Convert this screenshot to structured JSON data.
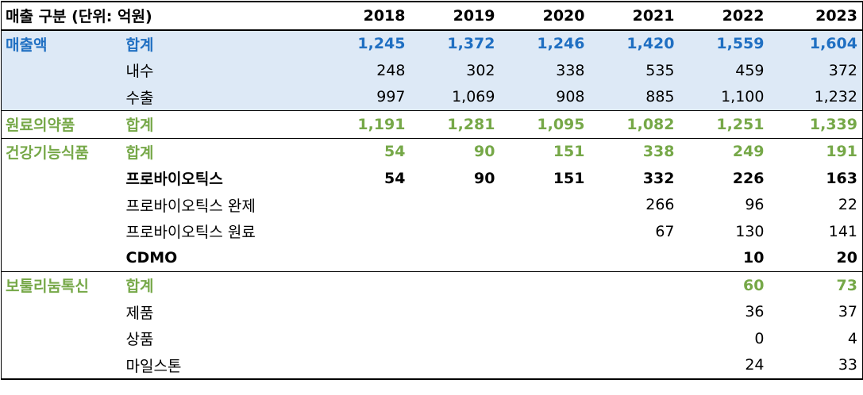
{
  "header": {
    "label": "매출 구분 (단위: 억원)",
    "years": [
      "2018",
      "2019",
      "2020",
      "2021",
      "2022",
      "2023"
    ]
  },
  "rows": [
    {
      "c1": "매출액",
      "c2": "합계",
      "values": [
        "1,245",
        "1,372",
        "1,246",
        "1,420",
        "1,559",
        "1,604"
      ]
    },
    {
      "c1": "",
      "c2": "내수",
      "values": [
        "248",
        "302",
        "338",
        "535",
        "459",
        "372"
      ]
    },
    {
      "c1": "",
      "c2": "수출",
      "values": [
        "997",
        "1,069",
        "908",
        "885",
        "1,100",
        "1,232"
      ]
    },
    {
      "c1": "원료의약품",
      "c2": "합계",
      "values": [
        "1,191",
        "1,281",
        "1,095",
        "1,082",
        "1,251",
        "1,339"
      ]
    },
    {
      "c1": "건강기능식품",
      "c2": "합계",
      "values": [
        "54",
        "90",
        "151",
        "338",
        "249",
        "191"
      ]
    },
    {
      "c1": "",
      "c2": "프로바이오틱스",
      "values": [
        "54",
        "90",
        "151",
        "332",
        "226",
        "163"
      ]
    },
    {
      "c1": "",
      "c2": "프로바이오틱스 완제",
      "values": [
        "",
        "",
        "",
        "266",
        "96",
        "22"
      ]
    },
    {
      "c1": "",
      "c2": "프로바이오틱스 원료",
      "values": [
        "",
        "",
        "",
        "67",
        "130",
        "141"
      ]
    },
    {
      "c1": "",
      "c2": "CDMO",
      "values": [
        "",
        "",
        "",
        "",
        "10",
        "20"
      ]
    },
    {
      "c1": "보툴리눔톡신",
      "c2": "합계",
      "values": [
        "",
        "",
        "",
        "",
        "60",
        "73"
      ]
    },
    {
      "c1": "",
      "c2": "제품",
      "values": [
        "",
        "",
        "",
        "",
        "36",
        "37"
      ]
    },
    {
      "c1": "",
      "c2": "상품",
      "values": [
        "",
        "",
        "",
        "",
        "0",
        "4"
      ]
    },
    {
      "c1": "",
      "c2": "마일스톤",
      "values": [
        "",
        "",
        "",
        "",
        "24",
        "33"
      ]
    }
  ],
  "colors": {
    "accent_blue": "#1f6fc2",
    "accent_green": "#76a848",
    "band_blue": "#dde9f6"
  }
}
